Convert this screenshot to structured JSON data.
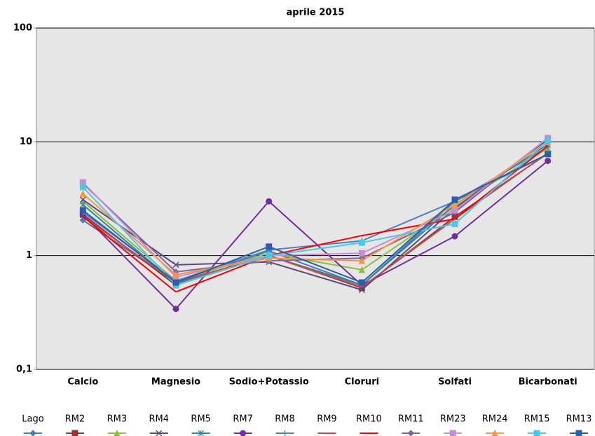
{
  "chart_data": {
    "type": "line",
    "title": "aprile 2015",
    "categories": [
      "Calcio",
      "Magnesio",
      "Sodio+Potassio",
      "Cloruri",
      "Solfati",
      "Bicarbonati"
    ],
    "log_scale": true,
    "grid": true,
    "legend": "bottom",
    "ylim": [
      0.1,
      100
    ],
    "yticks": [
      {
        "value": 0.1,
        "label": "0,1"
      },
      1,
      10,
      100
    ],
    "series": [
      {
        "name": "Lago",
        "color": "#4a7ab5",
        "marker": "diamond",
        "values": [
          2.05,
          0.58,
          1.1,
          0.55,
          3.0,
          7.8
        ]
      },
      {
        "name": "RM2",
        "color": "#943634",
        "marker": "square",
        "values": [
          2.3,
          0.55,
          1.0,
          0.52,
          2.2,
          7.9
        ]
      },
      {
        "name": "RM3",
        "color": "#8cbf3f",
        "marker": "triangle",
        "values": [
          3.0,
          0.6,
          1.05,
          0.75,
          2.7,
          8.8
        ]
      },
      {
        "name": "RM4",
        "color": "#604a7b",
        "marker": "x",
        "values": [
          3.1,
          0.83,
          0.88,
          0.5,
          2.6,
          10.5
        ]
      },
      {
        "name": "RM5",
        "color": "#31859c",
        "marker": "star",
        "values": [
          2.8,
          0.57,
          1.0,
          0.55,
          2.8,
          9.5
        ]
      },
      {
        "name": "RM7",
        "color": "#7030a0",
        "marker": "circle",
        "values": [
          2.3,
          0.34,
          3.0,
          0.55,
          1.48,
          6.8
        ]
      },
      {
        "name": "RM8",
        "color": "#4f81bd",
        "marker": "plus",
        "values": [
          2.4,
          0.6,
          1.12,
          1.35,
          3.0,
          9.0
        ]
      },
      {
        "name": "RM9",
        "color": "#c0504d",
        "marker": "none",
        "values": [
          2.2,
          0.58,
          1.0,
          0.53,
          2.1,
          8.0
        ]
      },
      {
        "name": "RM10",
        "color": "#ff0000",
        "marker": "none",
        "values": [
          2.2,
          0.48,
          1.0,
          1.5,
          2.1,
          9.2
        ]
      },
      {
        "name": "RM11",
        "color": "#8064a2",
        "marker": "diamond",
        "values": [
          4.3,
          0.72,
          0.9,
          0.95,
          2.4,
          10.8
        ]
      },
      {
        "name": "RM23",
        "color": "#c28fd0",
        "marker": "square",
        "values": [
          4.4,
          0.65,
          1.0,
          1.05,
          2.5,
          10.8
        ]
      },
      {
        "name": "RM24",
        "color": "#f79646",
        "marker": "triangle",
        "values": [
          3.5,
          0.68,
          0.95,
          0.9,
          2.8,
          10.0
        ]
      },
      {
        "name": "RM15",
        "color": "#4bc8e8",
        "marker": "square",
        "values": [
          4.0,
          0.55,
          1.0,
          1.3,
          1.9,
          10.2
        ]
      },
      {
        "name": "RM13",
        "color": "#2e5ea8",
        "marker": "square",
        "values": [
          2.5,
          0.58,
          1.2,
          0.58,
          3.1,
          7.8
        ]
      }
    ]
  }
}
